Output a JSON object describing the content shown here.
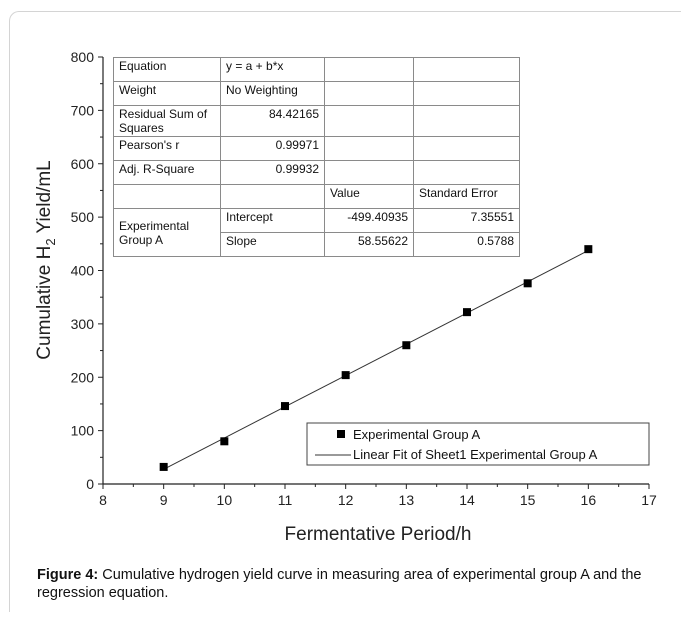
{
  "chart_data": {
    "type": "scatter",
    "xlabel": "Fermentative Period/h",
    "ylabel_main": "Cumulative H",
    "ylabel_sub": "2",
    "ylabel_tail": " Yield/mL",
    "xlim": [
      8,
      17
    ],
    "ylim": [
      0,
      800
    ],
    "x_ticks": [
      "8",
      "9",
      "10",
      "11",
      "12",
      "13",
      "14",
      "15",
      "16",
      "17"
    ],
    "y_ticks": [
      "0",
      "100",
      "200",
      "300",
      "400",
      "500",
      "600",
      "700",
      "800"
    ],
    "grid": false,
    "legend_position": "bottom-right",
    "series": [
      {
        "name": "Experimental Group A",
        "kind": "markers",
        "marker": "square",
        "x": [
          9,
          10,
          11,
          12,
          13,
          14,
          15,
          16
        ],
        "y": [
          32,
          80,
          146,
          204,
          260,
          322,
          376,
          440
        ]
      },
      {
        "name": "Linear Fit of Sheet1 Experimental Group A",
        "kind": "line",
        "intercept": -499.40935,
        "slope": 58.55622,
        "x_range": [
          9,
          16
        ]
      }
    ],
    "fit_table": {
      "rows": [
        [
          "Equation",
          "y = a + b*x",
          "",
          ""
        ],
        [
          "Weight",
          "No Weighting",
          "",
          ""
        ],
        [
          "Residual Sum of Squares",
          "84.42165",
          "",
          ""
        ],
        [
          "Pearson's r",
          "0.99971",
          "",
          ""
        ],
        [
          "Adj. R-Square",
          "0.99932",
          "",
          ""
        ],
        [
          "",
          "",
          "Value",
          "Standard Error"
        ],
        [
          "Experimental Group A",
          "Intercept",
          "-499.40935",
          "7.35551"
        ],
        [
          "",
          "Slope",
          "58.55622",
          "0.5788"
        ]
      ]
    }
  },
  "caption": {
    "label": "Figure 4:",
    "text": " Cumulative hydrogen yield curve in measuring area of experimental group A and the regression equation."
  },
  "colors": {
    "marker": "#000000",
    "fit_line": "#333333",
    "axis": "#222222"
  }
}
